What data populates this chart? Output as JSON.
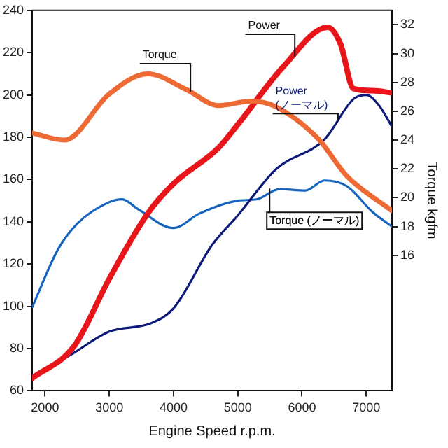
{
  "chart_data": {
    "type": "line",
    "xlabel": "Engine Speed r.p.m.",
    "y2label": "Torque kgfm",
    "xlim": [
      1800,
      7400
    ],
    "xticks": [
      2000,
      3000,
      4000,
      5000,
      6000,
      7000
    ],
    "ylim": [
      60,
      240
    ],
    "yticks": [
      60,
      80,
      100,
      120,
      140,
      160,
      180,
      200,
      220,
      240
    ],
    "y2lim": [
      6.6,
      33
    ],
    "y2ticks": [
      16,
      18,
      20,
      22,
      24,
      26,
      28,
      30,
      32
    ],
    "grid": false,
    "legend": false,
    "marker": "none",
    "line_style": "solid",
    "series": [
      {
        "name": "Torque",
        "color": "#ee6a35",
        "axis": "y2",
        "x": [
          1800,
          2300,
          3000,
          3600,
          4200,
          4700,
          5200,
          5550,
          6250,
          6700,
          7400
        ],
        "values": [
          24.5,
          24.0,
          27.2,
          28.6,
          27.5,
          26.4,
          26.7,
          26.4,
          24.1,
          21.5,
          19.1
        ]
      },
      {
        "name": "Power",
        "color": "#e8161b",
        "x": [
          1800,
          2450,
          3000,
          3600,
          4000,
          4700,
          5000,
          5700,
          6400,
          6600,
          6800,
          7100,
          7400
        ],
        "values": [
          66,
          81,
          113,
          144,
          158,
          175,
          186,
          213,
          232,
          224,
          203,
          202,
          201
        ]
      },
      {
        "name": "Power\n(ノーマル)",
        "color": "#0d1a7a",
        "x": [
          1800,
          2450,
          3000,
          3650,
          4000,
          4600,
          5000,
          5600,
          6350,
          6800,
          7000,
          7200,
          7400
        ],
        "values": [
          66,
          78,
          88,
          92,
          99,
          129,
          143,
          165,
          179,
          198,
          200,
          195,
          185
        ]
      },
      {
        "name": "Torque (ノーマル)",
        "color": "#1565c0",
        "axis": "y2",
        "x": [
          1800,
          2200,
          2500,
          3000,
          3200,
          3450,
          4000,
          4400,
          5000,
          5300,
          5650,
          6050,
          6350,
          6700,
          7100,
          7400
        ],
        "values": [
          12.4,
          16.4,
          18.2,
          19.7,
          19.9,
          19.2,
          17.9,
          18.9,
          19.8,
          19.9,
          20.6,
          20.5,
          21.2,
          20.8,
          19.0,
          18.0
        ]
      }
    ]
  }
}
